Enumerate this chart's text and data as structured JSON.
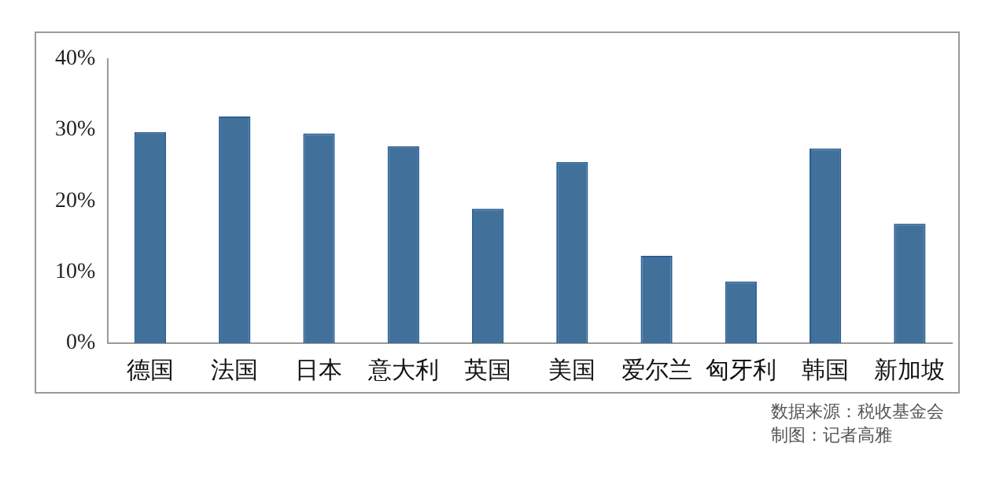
{
  "chart_data": {
    "type": "bar",
    "categories": [
      "德国",
      "法国",
      "日本",
      "意大利",
      "英国",
      "美国",
      "爱尔兰",
      "匈牙利",
      "韩国",
      "新加坡"
    ],
    "values": [
      29.7,
      31.9,
      29.5,
      27.7,
      18.9,
      25.5,
      12.3,
      8.7,
      27.4,
      16.8
    ],
    "color": "#41709b",
    "ylim": [
      0,
      40
    ],
    "yticks": [
      {
        "value": 0,
        "label": "0%"
      },
      {
        "value": 10,
        "label": "10%"
      },
      {
        "value": 20,
        "label": "20%"
      },
      {
        "value": 30,
        "label": "30%"
      },
      {
        "value": 40,
        "label": "40%"
      }
    ],
    "grid": false,
    "legend": false,
    "annotations": [
      "数据来源：税收基金会",
      "制图：记者高雅"
    ]
  }
}
